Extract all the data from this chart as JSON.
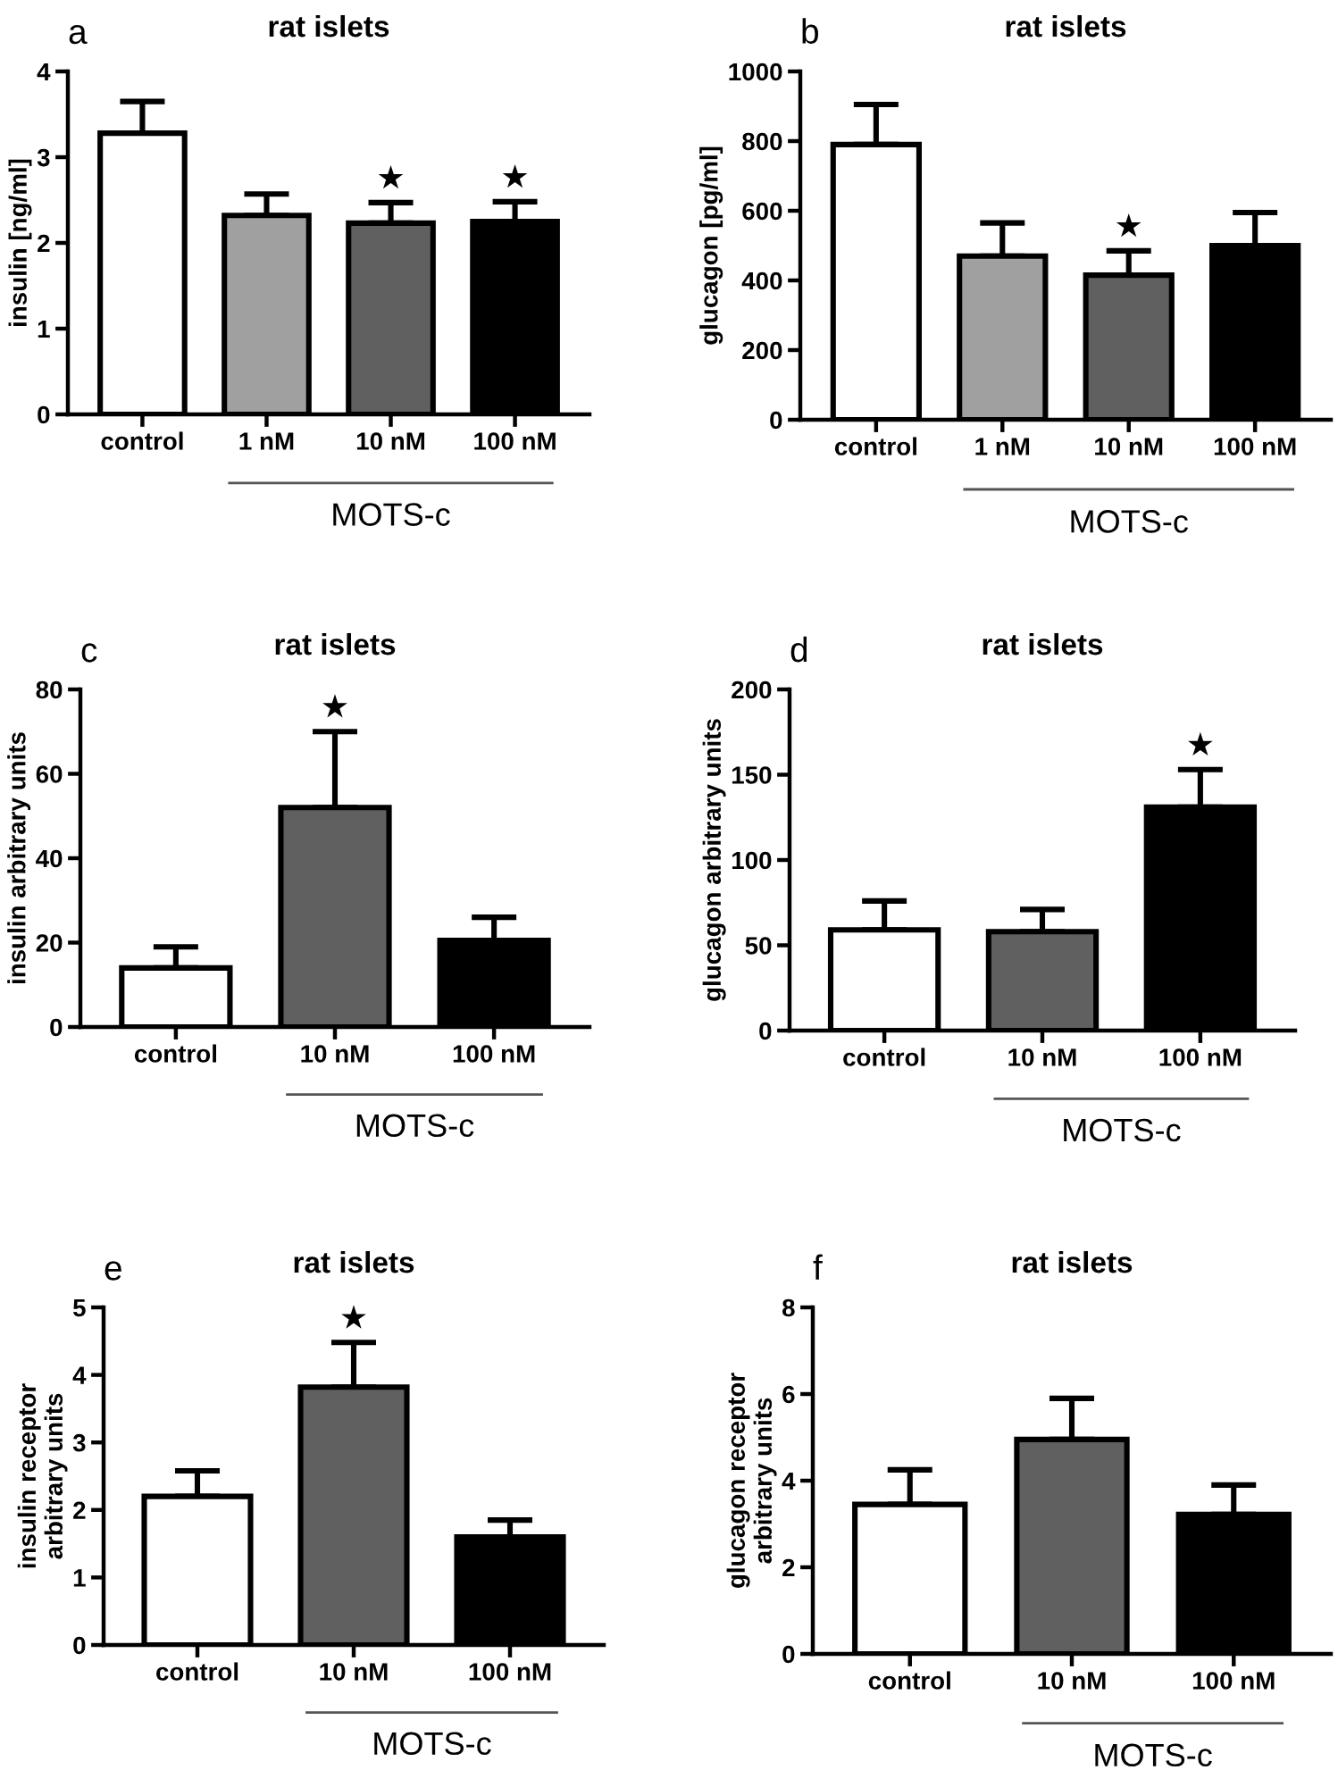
{
  "chart_data": [
    {
      "type": "bar",
      "title": "rat islets",
      "ylabel": "insulin [ng/ml]",
      "categories": [
        "control",
        "1 nM",
        "10 nM",
        "100 nM"
      ],
      "values": [
        3.28,
        2.32,
        2.23,
        2.25
      ],
      "errors": [
        [
          3.28,
          3.65
        ],
        [
          2.32,
          2.57
        ],
        [
          2.23,
          2.47
        ],
        [
          2.25,
          2.48
        ]
      ],
      "colors": [
        "#ffffff",
        "#a0a0a0",
        "#606060",
        "#000000"
      ],
      "ylim": [
        0,
        4
      ],
      "yticks": [
        0,
        1,
        2,
        3,
        4
      ],
      "grid": false,
      "legend": false,
      "value_labels": [
        null,
        null,
        "★",
        "★"
      ],
      "annotations": [
        "a",
        "MOTS-c"
      ]
    },
    {
      "type": "bar",
      "title": "rat islets",
      "ylabel": "glucagon [pg/ml]",
      "categories": [
        "control",
        "1 nM",
        "10 nM",
        "100 nM"
      ],
      "values": [
        790,
        470,
        415,
        500
      ],
      "errors": [
        [
          790,
          905
        ],
        [
          470,
          565
        ],
        [
          415,
          485
        ],
        [
          500,
          595
        ]
      ],
      "colors": [
        "#ffffff",
        "#a0a0a0",
        "#606060",
        "#000000"
      ],
      "ylim": [
        0,
        1000
      ],
      "yticks": [
        0,
        200,
        400,
        600,
        800,
        1000
      ],
      "grid": false,
      "legend": false,
      "value_labels": [
        null,
        null,
        "★",
        null
      ],
      "annotations": [
        "b",
        "MOTS-c"
      ]
    },
    {
      "type": "bar",
      "title": "rat islets",
      "ylabel": "insulin arbitrary units",
      "categories": [
        "control",
        "10 nM",
        "100 nM"
      ],
      "values": [
        14,
        52,
        20.5
      ],
      "errors": [
        [
          14,
          19
        ],
        [
          52,
          70
        ],
        [
          20.5,
          26
        ]
      ],
      "colors": [
        "#ffffff",
        "#606060",
        "#000000"
      ],
      "ylim": [
        0,
        80
      ],
      "yticks": [
        0,
        20,
        40,
        60,
        80
      ],
      "grid": false,
      "legend": false,
      "value_labels": [
        null,
        "★",
        null
      ],
      "annotations": [
        "c",
        "MOTS-c"
      ]
    },
    {
      "type": "bar",
      "title": "rat islets",
      "ylabel": "glucagon arbitrary units",
      "categories": [
        "control",
        "10 nM",
        "100 nM"
      ],
      "values": [
        59,
        58,
        131
      ],
      "errors": [
        [
          59,
          76
        ],
        [
          58,
          71
        ],
        [
          131,
          153
        ]
      ],
      "colors": [
        "#ffffff",
        "#606060",
        "#000000"
      ],
      "ylim": [
        0,
        200
      ],
      "yticks": [
        0,
        50,
        100,
        150,
        200
      ],
      "grid": false,
      "legend": false,
      "value_labels": [
        null,
        null,
        "★"
      ],
      "annotations": [
        "d",
        "MOTS-c"
      ]
    },
    {
      "type": "bar",
      "title": "rat islets",
      "ylabel": "insulin receptor\narbitrary units",
      "categories": [
        "control",
        "10 nM",
        "100 nM"
      ],
      "values": [
        2.2,
        3.82,
        1.6
      ],
      "errors": [
        [
          2.2,
          2.58
        ],
        [
          3.82,
          4.48
        ],
        [
          1.6,
          1.85
        ]
      ],
      "colors": [
        "#ffffff",
        "#606060",
        "#000000"
      ],
      "ylim": [
        0,
        5
      ],
      "yticks": [
        0,
        1,
        2,
        3,
        4,
        5
      ],
      "grid": false,
      "legend": false,
      "value_labels": [
        null,
        "★",
        null
      ],
      "annotations": [
        "e",
        "MOTS-c"
      ]
    },
    {
      "type": "bar",
      "title": "rat islets",
      "ylabel": "glucagon receptor\narbitrary units",
      "categories": [
        "control",
        "10 nM",
        "100 nM"
      ],
      "values": [
        3.45,
        4.95,
        3.22
      ],
      "errors": [
        [
          3.45,
          4.25
        ],
        [
          4.95,
          5.9
        ],
        [
          3.22,
          3.9
        ]
      ],
      "colors": [
        "#ffffff",
        "#606060",
        "#000000"
      ],
      "ylim": [
        0,
        8
      ],
      "yticks": [
        0,
        2,
        4,
        6,
        8
      ],
      "grid": false,
      "legend": false,
      "annotations": [
        "f",
        "MOTS-c"
      ]
    }
  ]
}
